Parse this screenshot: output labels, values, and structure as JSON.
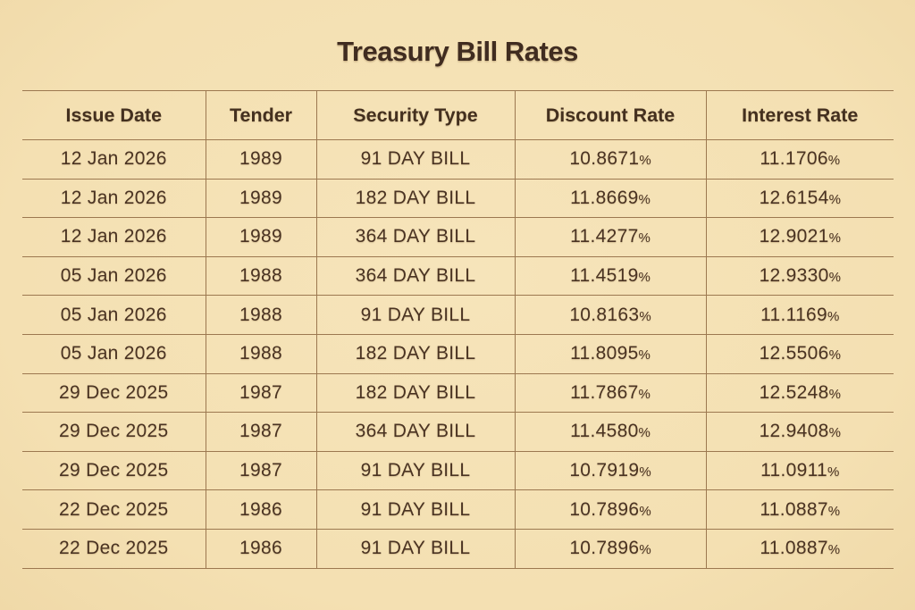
{
  "page_title": "Treasury Bill Rates",
  "colors": {
    "bg": "#f4e0b2",
    "ink": "#4a3322",
    "line": "#9c7850",
    "title_ink": "#402c20"
  },
  "chart_data": {
    "type": "table",
    "title": "Treasury Bill Rates",
    "columns": [
      "Issue Date",
      "Tender",
      "Security Type",
      "Discount Rate",
      "Interest Rate"
    ],
    "rows": [
      {
        "issue_date": "12 Jan 2026",
        "tender": "1989",
        "security_type": "91 DAY BILL",
        "discount_rate": "10.8671%",
        "interest_rate": "11.1706%"
      },
      {
        "issue_date": "12 Jan 2026",
        "tender": "1989",
        "security_type": "182 DAY BILL",
        "discount_rate": "11.8669%",
        "interest_rate": "12.6154%"
      },
      {
        "issue_date": "12 Jan 2026",
        "tender": "1989",
        "security_type": "364 DAY BILL",
        "discount_rate": "11.4277%",
        "interest_rate": "12.9021%"
      },
      {
        "issue_date": "05 Jan 2026",
        "tender": "1988",
        "security_type": "364 DAY BILL",
        "discount_rate": "11.4519%",
        "interest_rate": "12.9330%"
      },
      {
        "issue_date": "05 Jan 2026",
        "tender": "1988",
        "security_type": "91 DAY BILL",
        "discount_rate": "10.8163%",
        "interest_rate": "11.1169%"
      },
      {
        "issue_date": "05 Jan 2026",
        "tender": "1988",
        "security_type": "182 DAY BILL",
        "discount_rate": "11.8095%",
        "interest_rate": "12.5506%"
      },
      {
        "issue_date": "29 Dec 2025",
        "tender": "1987",
        "security_type": "182 DAY BILL",
        "discount_rate": "11.7867%",
        "interest_rate": "12.5248%"
      },
      {
        "issue_date": "29 Dec 2025",
        "tender": "1987",
        "security_type": "364 DAY BILL",
        "discount_rate": "11.4580%",
        "interest_rate": "12.9408%"
      },
      {
        "issue_date": "29 Dec 2025",
        "tender": "1987",
        "security_type": "91 DAY BILL",
        "discount_rate": "10.7919%",
        "interest_rate": "11.0911%"
      },
      {
        "issue_date": "22 Dec 2025",
        "tender": "1986",
        "security_type": "91 DAY BILL",
        "discount_rate": "10.7896%",
        "interest_rate": "11.0887%"
      },
      {
        "issue_date": "22 Dec 2025",
        "tender": "1986",
        "security_type": "91 DAY BILL",
        "discount_rate": "10.7896%",
        "interest_rate": "11.0887%"
      }
    ]
  }
}
